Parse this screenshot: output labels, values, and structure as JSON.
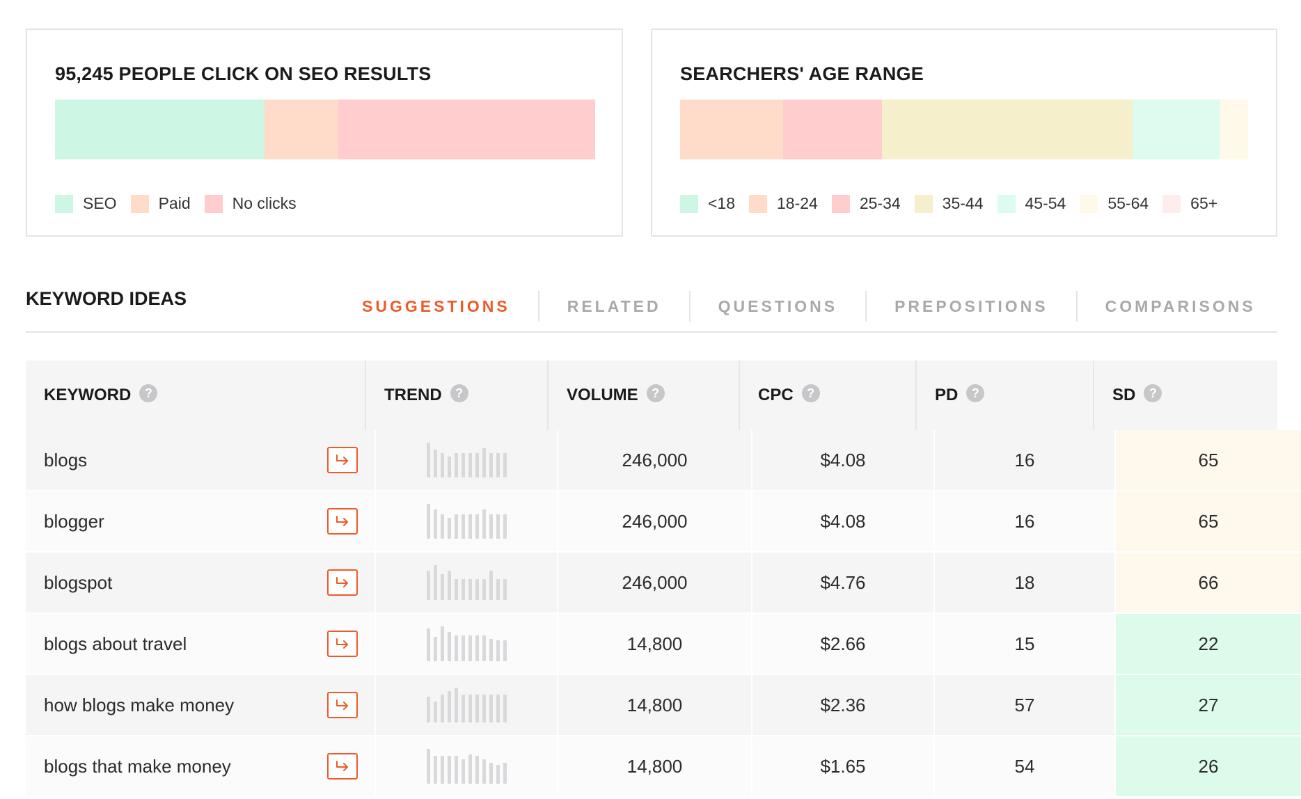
{
  "seo_card": {
    "title": "95,245 PEOPLE CLICK ON SEO RESULTS",
    "segments": [
      {
        "label": "SEO",
        "value": 38.8,
        "color": "#cdf7e4"
      },
      {
        "label": "Paid",
        "value": 13.6,
        "color": "#ffdcc9"
      },
      {
        "label": "No clicks",
        "value": 47.6,
        "color": "#ffcdcd"
      }
    ]
  },
  "age_card": {
    "title": "SEARCHERS' AGE RANGE",
    "segments": [
      {
        "label": "<18",
        "value": 0,
        "color": "#cdf7e4"
      },
      {
        "label": "18-24",
        "value": 18.1,
        "color": "#ffdcc9"
      },
      {
        "label": "25-34",
        "value": 17.5,
        "color": "#ffcdcd"
      },
      {
        "label": "35-44",
        "value": 44.0,
        "color": "#f6efcb"
      },
      {
        "label": "45-54",
        "value": 15.5,
        "color": "#ddfbee"
      },
      {
        "label": "55-64",
        "value": 4.9,
        "color": "#fff9ea"
      },
      {
        "label": "65+",
        "value": 0,
        "color": "#ffeded"
      }
    ]
  },
  "section": {
    "title": "KEYWORD IDEAS",
    "tabs": [
      {
        "label": "SUGGESTIONS",
        "active": true
      },
      {
        "label": "RELATED",
        "active": false
      },
      {
        "label": "QUESTIONS",
        "active": false
      },
      {
        "label": "PREPOSITIONS",
        "active": false
      },
      {
        "label": "COMPARISONS",
        "active": false
      }
    ]
  },
  "table": {
    "columns": [
      "KEYWORD",
      "TREND",
      "VOLUME",
      "CPC",
      "PD",
      "SD"
    ],
    "help_glyph": "?",
    "rows": [
      {
        "keyword": "blogs",
        "volume": "246,000",
        "cpc": "$4.08",
        "pd": "16",
        "sd": "65",
        "sd_color": "#fff9ed",
        "trend": [
          1.0,
          0.8,
          0.7,
          0.6,
          0.7,
          0.7,
          0.7,
          0.7,
          0.85,
          0.7,
          0.7,
          0.7
        ]
      },
      {
        "keyword": "blogger",
        "volume": "246,000",
        "cpc": "$4.08",
        "pd": "16",
        "sd": "65",
        "sd_color": "#fff9ed",
        "trend": [
          1.0,
          0.85,
          0.7,
          0.6,
          0.7,
          0.7,
          0.7,
          0.7,
          0.85,
          0.7,
          0.7,
          0.7
        ]
      },
      {
        "keyword": "blogspot",
        "volume": "246,000",
        "cpc": "$4.76",
        "pd": "18",
        "sd": "66",
        "sd_color": "#fff9ed",
        "trend": [
          0.85,
          1.0,
          0.75,
          0.85,
          0.6,
          0.6,
          0.6,
          0.6,
          0.6,
          0.85,
          0.6,
          0.6
        ]
      },
      {
        "keyword": "blogs about travel",
        "volume": "14,800",
        "cpc": "$2.66",
        "pd": "15",
        "sd": "22",
        "sd_color": "#dcfbeb",
        "trend": [
          0.95,
          0.7,
          1.0,
          0.85,
          0.75,
          0.75,
          0.75,
          0.75,
          0.75,
          0.65,
          0.6,
          0.6
        ]
      },
      {
        "keyword": "how blogs make money",
        "volume": "14,800",
        "cpc": "$2.36",
        "pd": "57",
        "sd": "27",
        "sd_color": "#dcfbeb",
        "trend": [
          0.75,
          0.6,
          0.8,
          0.9,
          1.0,
          0.8,
          0.8,
          0.8,
          0.8,
          0.8,
          0.8,
          0.8
        ]
      },
      {
        "keyword": "blogs that make money",
        "volume": "14,800",
        "cpc": "$1.65",
        "pd": "54",
        "sd": "26",
        "sd_color": "#dcfbeb",
        "trend": [
          1.0,
          0.8,
          0.8,
          0.8,
          0.8,
          0.7,
          0.85,
          0.8,
          0.7,
          0.6,
          0.55,
          0.6
        ]
      }
    ]
  }
}
